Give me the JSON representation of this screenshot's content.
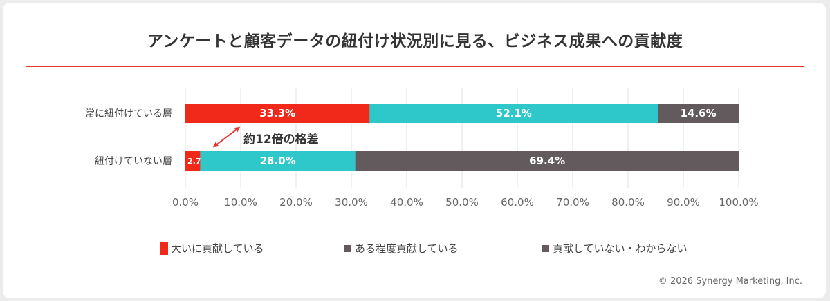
{
  "title": "アンケートと顧客データの紐付け状況別に見る、ビジネス成果への貢献度",
  "copyright": "© 2026 Synergy Marketing, Inc.",
  "colors": {
    "rule": "#e53528",
    "great": "#f0291a",
    "some": "#2ec8cb",
    "none": "#625a5c",
    "grid": "#e0e0e0",
    "annotation": "#e5342a"
  },
  "annotation": "約12倍の格差",
  "legend": [
    {
      "label": "大いに貢献している",
      "marker": "bar"
    },
    {
      "label": "ある程度貢献している",
      "marker": "square"
    },
    {
      "label": "貢献していない・わからない",
      "marker": "square"
    }
  ],
  "chart_data": {
    "type": "bar",
    "orientation": "horizontal",
    "stacked": true,
    "categories": [
      "常に紐付けている層",
      "紐付けていない層"
    ],
    "series": [
      {
        "name": "大いに貢献している",
        "values": [
          33.3,
          2.7
        ]
      },
      {
        "name": "ある程度貢献している",
        "values": [
          52.1,
          28.0
        ]
      },
      {
        "name": "貢献していない・わからない",
        "values": [
          14.6,
          69.4
        ]
      }
    ],
    "data_labels": [
      [
        "33.3%",
        "52.1%",
        "14.6%"
      ],
      [
        "2.7%",
        "28.0%",
        "69.4%"
      ]
    ],
    "xlim": [
      0,
      100
    ],
    "xticks": [
      "0.0%",
      "10.0%",
      "20.0%",
      "30.0%",
      "40.0%",
      "50.0%",
      "60.0%",
      "70.0%",
      "80.0%",
      "90.0%",
      "100.0%"
    ],
    "grid": true,
    "legend_position": "bottom"
  }
}
